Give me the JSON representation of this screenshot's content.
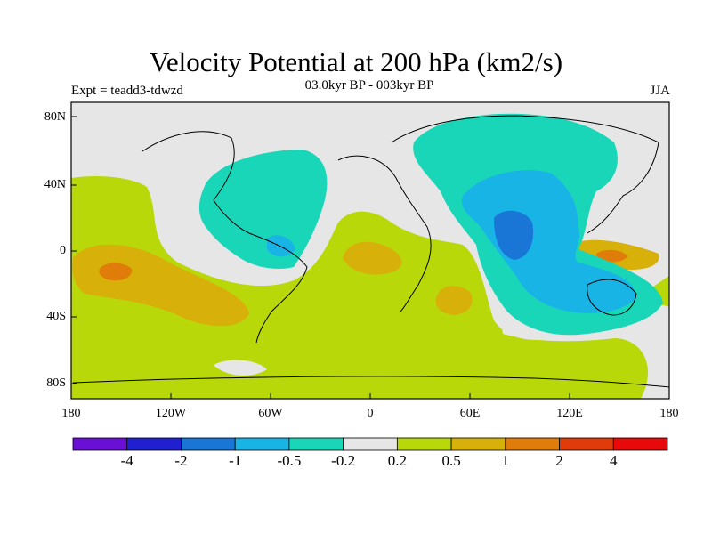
{
  "header": {
    "title": "Velocity Potential at 200 hPa (km2/s)",
    "subtitle": "03.0kyr BP - 003kyr BP",
    "left_label": "Expt = teadd3-tdwzd",
    "right_label": "JJA"
  },
  "axes": {
    "lat_ticks": [
      "80N",
      "40N",
      "0",
      "40S",
      "80S"
    ],
    "lon_ticks": [
      "180",
      "120W",
      "60W",
      "0",
      "60E",
      "120E",
      "180"
    ]
  },
  "colorbar": {
    "colors": [
      "#6a0fd6",
      "#2020d0",
      "#1976d6",
      "#19b4e6",
      "#1ad6b8",
      "#e6e6e6",
      "#b8d80a",
      "#d8b00a",
      "#e07c0a",
      "#e03c0a",
      "#e80a0a"
    ],
    "labels": [
      "-4",
      "-2",
      "-1",
      "-0.5",
      "-0.2",
      "0.2",
      "0.5",
      "1",
      "2",
      "4"
    ]
  }
}
